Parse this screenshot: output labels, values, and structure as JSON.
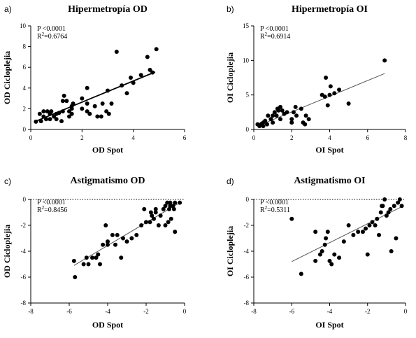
{
  "chart_data": [
    {
      "type": "scatter",
      "letter": "a)",
      "title": "Hipermetropía OD",
      "xlabel": "OD Spot",
      "ylabel": "OD Cicloplejia",
      "stats": {
        "p": "P <0.0001",
        "r2_prefix": "R",
        "r2_sup": "2",
        "r2_value": "=0.6764"
      },
      "xlim": [
        0,
        6
      ],
      "ylim": [
        0,
        10
      ],
      "xticks": [
        0,
        2,
        4,
        6
      ],
      "yticks": [
        0,
        2,
        4,
        6,
        8,
        10
      ],
      "fit": {
        "x": [
          0.2,
          4.85
        ],
        "y": [
          0.8,
          5.55
        ],
        "style": "thick"
      },
      "zero_line": false,
      "points": [
        [
          0.2,
          0.75
        ],
        [
          0.35,
          1.5
        ],
        [
          0.4,
          0.8
        ],
        [
          0.5,
          1.75
        ],
        [
          0.5,
          1.25
        ],
        [
          0.6,
          1.0
        ],
        [
          0.65,
          1.75
        ],
        [
          0.75,
          1.5
        ],
        [
          0.75,
          1.0
        ],
        [
          0.8,
          1.75
        ],
        [
          0.9,
          1.25
        ],
        [
          1.0,
          1.5
        ],
        [
          1.0,
          1.0
        ],
        [
          1.1,
          1.6
        ],
        [
          1.2,
          0.8
        ],
        [
          1.25,
          1.75
        ],
        [
          1.25,
          2.75
        ],
        [
          1.3,
          3.25
        ],
        [
          1.4,
          2.75
        ],
        [
          1.5,
          1.75
        ],
        [
          1.5,
          1.25
        ],
        [
          1.6,
          1.5
        ],
        [
          1.6,
          2.0
        ],
        [
          1.6,
          2.25
        ],
        [
          1.65,
          2.5
        ],
        [
          2.0,
          2.0
        ],
        [
          2.0,
          3.0
        ],
        [
          2.2,
          2.5
        ],
        [
          2.2,
          1.75
        ],
        [
          2.2,
          4.0
        ],
        [
          2.3,
          1.5
        ],
        [
          2.5,
          2.25
        ],
        [
          2.6,
          1.25
        ],
        [
          2.75,
          1.25
        ],
        [
          2.8,
          2.5
        ],
        [
          2.95,
          1.75
        ],
        [
          3.0,
          3.75
        ],
        [
          3.05,
          1.5
        ],
        [
          3.15,
          2.5
        ],
        [
          3.35,
          7.5
        ],
        [
          3.55,
          4.25
        ],
        [
          3.75,
          3.5
        ],
        [
          3.9,
          5.0
        ],
        [
          4.0,
          4.5
        ],
        [
          4.3,
          5.25
        ],
        [
          4.55,
          7.0
        ],
        [
          4.65,
          5.75
        ],
        [
          4.75,
          5.5
        ],
        [
          4.9,
          7.75
        ]
      ]
    },
    {
      "type": "scatter",
      "letter": "b)",
      "title": "Hipermetropía OI",
      "xlabel": "OI Spot",
      "ylabel": "OI Cicloplejia",
      "stats": {
        "p": "P <0.0001",
        "r2_prefix": "R",
        "r2_sup": "2",
        "r2_value": "=0.6914"
      },
      "xlim": [
        0,
        8
      ],
      "ylim": [
        0,
        15
      ],
      "xticks": [
        0,
        2,
        4,
        6,
        8
      ],
      "yticks": [
        0,
        5,
        10,
        15
      ],
      "fit": {
        "x": [
          0.2,
          6.9
        ],
        "y": [
          0.5,
          8.1
        ],
        "style": "thin"
      },
      "zero_line": false,
      "points": [
        [
          0.2,
          0.75
        ],
        [
          0.3,
          0.5
        ],
        [
          0.4,
          0.8
        ],
        [
          0.5,
          0.5
        ],
        [
          0.5,
          1.0
        ],
        [
          0.6,
          1.25
        ],
        [
          0.7,
          0.75
        ],
        [
          0.75,
          2.0
        ],
        [
          0.9,
          1.5
        ],
        [
          1.0,
          2.0
        ],
        [
          1.0,
          1.0
        ],
        [
          1.1,
          2.5
        ],
        [
          1.2,
          2.0
        ],
        [
          1.25,
          3.0
        ],
        [
          1.3,
          2.75
        ],
        [
          1.4,
          1.5
        ],
        [
          1.4,
          3.25
        ],
        [
          1.5,
          2.75
        ],
        [
          1.6,
          2.25
        ],
        [
          1.75,
          2.5
        ],
        [
          2.0,
          1.5
        ],
        [
          2.0,
          1.0
        ],
        [
          2.1,
          2.5
        ],
        [
          2.2,
          3.25
        ],
        [
          2.25,
          2.0
        ],
        [
          2.5,
          3.0
        ],
        [
          2.6,
          1.0
        ],
        [
          2.7,
          0.75
        ],
        [
          2.75,
          2.0
        ],
        [
          2.9,
          1.5
        ],
        [
          3.6,
          5.0
        ],
        [
          3.75,
          4.75
        ],
        [
          3.8,
          7.5
        ],
        [
          3.9,
          3.5
        ],
        [
          4.0,
          5.0
        ],
        [
          4.05,
          6.25
        ],
        [
          4.25,
          5.25
        ],
        [
          4.5,
          5.75
        ],
        [
          5.0,
          3.75
        ],
        [
          6.9,
          10.0
        ]
      ]
    },
    {
      "type": "scatter",
      "letter": "c)",
      "title": "Astigmatismo OD",
      "xlabel": "OD Spot",
      "ylabel": "OD Cicloplejia",
      "stats": {
        "p": "P <0.0001",
        "r2_prefix": "R",
        "r2_sup": "2",
        "r2_value": "=0.8456"
      },
      "xlim": [
        -8,
        0
      ],
      "ylim": [
        -8,
        0
      ],
      "xticks": [
        -8,
        -6,
        -4,
        -2,
        0
      ],
      "yticks": [
        -8,
        -6,
        -4,
        -2,
        0
      ],
      "fit": {
        "x": [
          -5.75,
          -0.25
        ],
        "y": [
          -5.1,
          -0.25
        ],
        "style": "thin"
      },
      "zero_line": true,
      "points": [
        [
          -5.75,
          -4.75
        ],
        [
          -5.7,
          -6.0
        ],
        [
          -5.25,
          -5.0
        ],
        [
          -5.1,
          -4.5
        ],
        [
          -5.0,
          -5.0
        ],
        [
          -4.8,
          -4.5
        ],
        [
          -4.6,
          -4.5
        ],
        [
          -4.5,
          -4.25
        ],
        [
          -4.4,
          -5.0
        ],
        [
          -4.25,
          -3.5
        ],
        [
          -4.1,
          -2.0
        ],
        [
          -4.0,
          -3.5
        ],
        [
          -4.0,
          -3.25
        ],
        [
          -3.75,
          -2.75
        ],
        [
          -3.6,
          -3.5
        ],
        [
          -3.5,
          -2.75
        ],
        [
          -3.3,
          -4.5
        ],
        [
          -3.2,
          -3.0
        ],
        [
          -3.0,
          -3.25
        ],
        [
          -2.75,
          -3.0
        ],
        [
          -2.5,
          -2.75
        ],
        [
          -2.25,
          -2.0
        ],
        [
          -2.1,
          -0.75
        ],
        [
          -2.0,
          -1.75
        ],
        [
          -1.8,
          -1.75
        ],
        [
          -1.75,
          -1.0
        ],
        [
          -1.7,
          -1.25
        ],
        [
          -1.6,
          -1.5
        ],
        [
          -1.5,
          -1.0
        ],
        [
          -1.5,
          -0.75
        ],
        [
          -1.35,
          -2.0
        ],
        [
          -1.25,
          -1.25
        ],
        [
          -1.1,
          -0.75
        ],
        [
          -1.0,
          -0.5
        ],
        [
          -1.0,
          -2.0
        ],
        [
          -0.9,
          -0.25
        ],
        [
          -0.85,
          -1.75
        ],
        [
          -0.8,
          -0.75
        ],
        [
          -0.75,
          -0.5
        ],
        [
          -0.75,
          -0.25
        ],
        [
          -0.7,
          -1.5
        ],
        [
          -0.6,
          -0.5
        ],
        [
          -0.55,
          -0.75
        ],
        [
          -0.5,
          -0.25
        ],
        [
          -0.5,
          -2.5
        ],
        [
          -0.25,
          -0.25
        ]
      ]
    },
    {
      "type": "scatter",
      "letter": "d)",
      "title": "Astigmatismo OI",
      "xlabel": "OI Spot",
      "ylabel": "OI Cicloplejia",
      "stats": {
        "p": "P <0.0001",
        "r2_prefix": "R",
        "r2_sup": "2",
        "r2_value": "=0.5311"
      },
      "xlim": [
        -8,
        0
      ],
      "ylim": [
        -8,
        0
      ],
      "xticks": [
        -8,
        -6,
        -4,
        -2,
        0
      ],
      "yticks": [
        -8,
        -6,
        -4,
        -2,
        0
      ],
      "fit": {
        "x": [
          -6.0,
          -0.25
        ],
        "y": [
          -4.8,
          -0.6
        ],
        "style": "thin"
      },
      "zero_line": true,
      "points": [
        [
          -6.0,
          -1.5
        ],
        [
          -5.5,
          -5.75
        ],
        [
          -4.75,
          -4.75
        ],
        [
          -4.75,
          -2.5
        ],
        [
          -4.5,
          -4.25
        ],
        [
          -4.4,
          -4.0
        ],
        [
          -4.25,
          -3.5
        ],
        [
          -4.2,
          -3.0
        ],
        [
          -4.1,
          -2.5
        ],
        [
          -4.0,
          -4.75
        ],
        [
          -3.9,
          -5.0
        ],
        [
          -3.75,
          -4.25
        ],
        [
          -3.5,
          -4.5
        ],
        [
          -3.25,
          -3.25
        ],
        [
          -3.0,
          -2.0
        ],
        [
          -2.75,
          -2.75
        ],
        [
          -2.5,
          -2.5
        ],
        [
          -2.25,
          -2.5
        ],
        [
          -2.1,
          -2.25
        ],
        [
          -2.0,
          -4.25
        ],
        [
          -1.9,
          -2.0
        ],
        [
          -1.75,
          -1.75
        ],
        [
          -1.6,
          -2.0
        ],
        [
          -1.5,
          -1.5
        ],
        [
          -1.4,
          -2.75
        ],
        [
          -1.3,
          -1.0
        ],
        [
          -1.25,
          -0.5
        ],
        [
          -1.2,
          -0.5
        ],
        [
          -1.1,
          0.0
        ],
        [
          -1.0,
          -1.25
        ],
        [
          -0.9,
          -1.0
        ],
        [
          -0.8,
          -0.75
        ],
        [
          -0.75,
          -4.0
        ],
        [
          -0.6,
          -0.5
        ],
        [
          -0.5,
          -3.0
        ],
        [
          -0.4,
          -0.25
        ],
        [
          -0.3,
          0.0
        ],
        [
          -0.2,
          -0.5
        ]
      ]
    }
  ]
}
